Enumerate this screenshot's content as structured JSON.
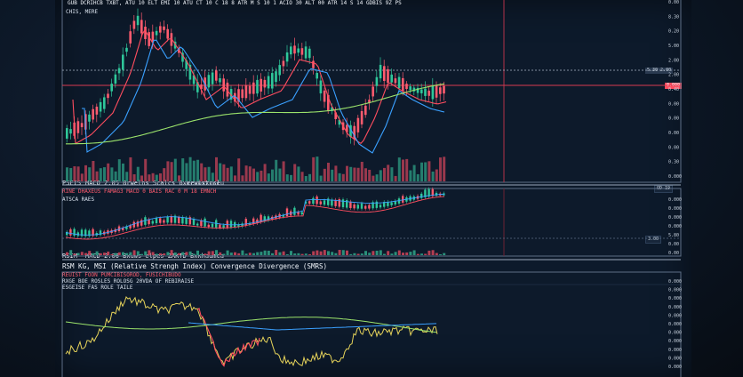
{
  "top_header": "GUB DCRIHCB TXBT, ATU 10 ELT EMI 10 ATU CT 10 C 18 8 ATR M S 10 1 ACIO 30 ALT 00 ATR 14 S 14 GDBIS 9Z PS",
  "top_left_label": "CHIS, MERE",
  "price_axis_top": [
    "0.00",
    "8.30",
    "0.20",
    "5.00",
    "2.00",
    "2.00",
    "0.40",
    "0.00",
    "0.00",
    "0.00",
    "0.00",
    "0.30",
    "0.000"
  ],
  "price_axis_markers": {
    "gray": "5.30 2.00",
    "red": "0.000"
  },
  "macd_panel": {
    "header_left": "PSEIS",
    "header_title": "MACD 2.05 Brwelhs Scalcs Bxeruistrce",
    "header_right": "Vewoxxuslu",
    "sub_row": "RINE DHAXEUS FAMAG3 MACD 0 BAIS RAC 0 M 18 EMNCH",
    "sub_row2": "ATSCA RAES",
    "axis": [
      "0.000",
      "0.000",
      "0.000",
      "0.000",
      "5.80",
      "0.00",
      "0.00"
    ],
    "markers": {
      "top": "OD 19",
      "bottom": "3.00"
    }
  },
  "rsi_panel": {
    "header_left": "RSIM",
    "header_title": "MACD 2.06 Bxuws elpes ZAKTD Bxkhaumca",
    "title": "RSM  KG, MSI (Relative Strengh Index) Convergence Divergence (SMRS)",
    "line1": "REUIST FOON PUMCIBISOROD, FUSICHIBUDO",
    "line2": "RXGE BOE ROSLES ROLOSG 20VDA OF REBIRAISE",
    "line3": "ESGEISE FAS ROLE TAILE",
    "axis": [
      "0.000",
      "0.000",
      "0.000",
      "0.000",
      "0.000",
      "0.000",
      "0.000",
      "0.000",
      "0.000",
      "0.000",
      "0.000"
    ]
  },
  "colors": {
    "bull": "#2fc79a",
    "bear": "#ff5b6e",
    "blue_ma": "#3aa0ff",
    "green_ma": "#9be36b",
    "red_ma": "#ff4d5f",
    "rsi_line": "#e6d35a"
  }
}
